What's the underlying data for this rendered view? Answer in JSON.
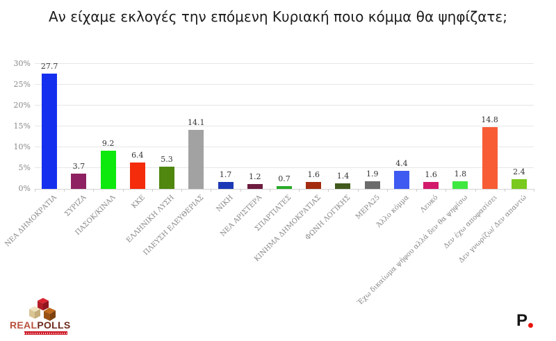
{
  "title": "Αν είχαμε εκλογές την επόμενη Κυριακή ποιο κόμμα θα ψηφίζατε;",
  "chart_data": {
    "type": "bar",
    "title": "Αν είχαμε εκλογές την επόμενη Κυριακή ποιο κόμμα θα ψηφίζατε;",
    "categories": [
      "ΝΕΑ ΔΗΜΟΚΡΑΤΙΑ",
      "ΣΥΡΙΖΑ",
      "ΠΑΣΟΚ/ΚΙΝΑΛ",
      "ΚΚΕ",
      "ΕΛΛΗΝΙΚΗ ΛΥΣΗ",
      "ΠΛΕΥΣΗ ΕΛΕΥΘΕΡΙΑΣ",
      "ΝΙΚΗ",
      "ΝΕΑ ΑΡΙΣΤΕΡΑ",
      "ΣΠΑΡΤΙΑΤΕΣ",
      "ΚΙΝΗΜΑ ΔΗΜΟΚΡΑΤΙΑΣ",
      "ΦΩΝΗ ΛΟΓΙΚΗΣ",
      "ΜΕΡΑ25",
      "Άλλο κόμμα",
      "Λευκό",
      "Έχω δικαίωμα ψήφου αλλά δεν θα ψηφίσω",
      "Δεν έχω αποφασίσει",
      "Δεν γνωρίζω/ Δεν απαντώ"
    ],
    "values": [
      27.7,
      3.7,
      9.2,
      6.4,
      5.3,
      14.1,
      1.7,
      1.2,
      0.7,
      1.6,
      1.4,
      1.9,
      4.4,
      1.6,
      1.8,
      14.8,
      2.4
    ],
    "bar_colors": [
      "#1430ee",
      "#8e2161",
      "#0de80d",
      "#f42c0c",
      "#4f870f",
      "#a2a2a2",
      "#1c39b5",
      "#6e1c3f",
      "#27aa27",
      "#a32b10",
      "#41591c",
      "#6b6b6b",
      "#3f5af0",
      "#d2196b",
      "#3fe83f",
      "#f75c35",
      "#7ac91e"
    ],
    "xlabel": "",
    "ylabel": "",
    "ylim": [
      0,
      30
    ],
    "ytick_values": [
      0,
      5,
      10,
      15,
      20,
      25,
      30
    ],
    "ytick_labels": [
      "0%",
      "5%",
      "10%",
      "15%",
      "20%",
      "25%",
      "30%"
    ],
    "grid": true,
    "legend": false,
    "value_labels_shown": true
  },
  "branding": {
    "realpolls_logo": {
      "text_real": "REAL",
      "text_polls": "POLLS",
      "colors": {
        "real": "#b8503a",
        "polls": "#6d2a1b",
        "tagline_bar": "#cf1b28",
        "cube_red": "#d92430",
        "cube_cream": "#f0e3c0",
        "cube_brown": "#c06a1e"
      }
    },
    "politic_logo": {
      "letter": "P",
      "letter_color": "#141414",
      "dot_color": "#e8150d"
    }
  },
  "theme": {
    "background": "#ffffff",
    "gridline": "#e6e6e6",
    "axis_line": "#d4d4d4",
    "axis_label": "#888888",
    "value_label": "#333333",
    "title_color": "#1b1b1b"
  }
}
